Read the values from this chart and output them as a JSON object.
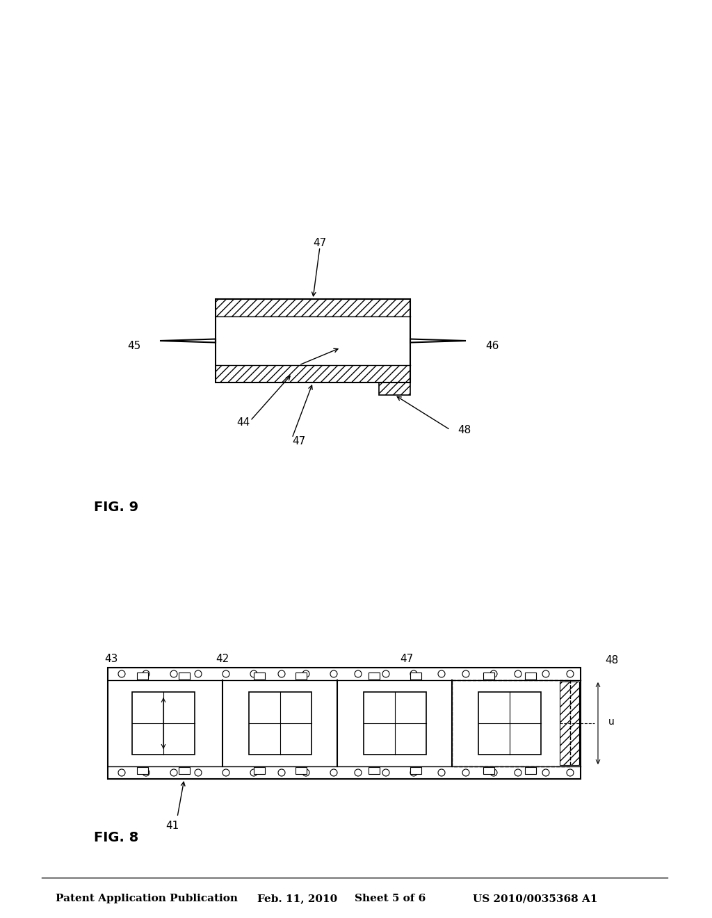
{
  "title_text": "Patent Application Publication",
  "date_text": "Feb. 11, 2010",
  "sheet_text": "Sheet 5 of 6",
  "patent_text": "US 2010/0035368 A1",
  "fig8_label": "FIG. 8",
  "fig9_label": "FIG. 9",
  "bg_color": "#ffffff",
  "line_color": "#000000",
  "fig8": {
    "label_41": "41",
    "label_42": "42",
    "label_43": "43",
    "label_47": "47",
    "label_48": "48",
    "label_u": "u"
  },
  "fig9": {
    "label_44": "44",
    "label_45": "45",
    "label_46": "46",
    "label_47": "47",
    "label_48": "48"
  }
}
